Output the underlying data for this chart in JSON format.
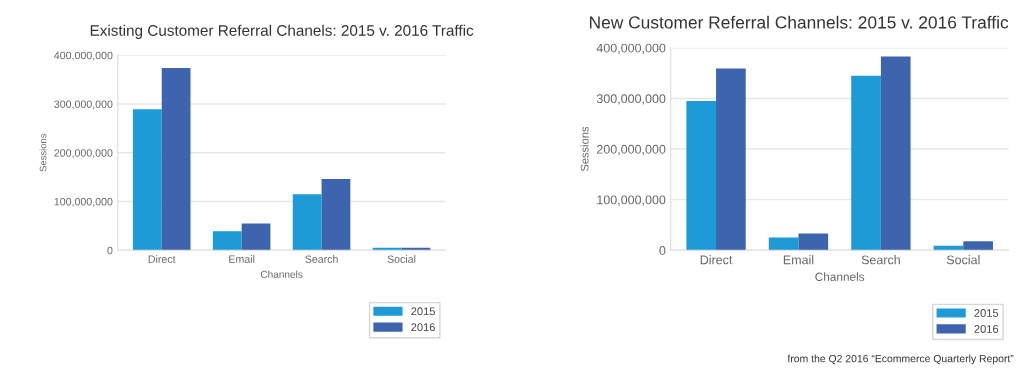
{
  "chart_data": [
    {
      "type": "bar",
      "title": "Existing Customer Referral Chanels: 2015 v. 2016 Traffic",
      "xlabel": "Channels",
      "ylabel": "Sessions",
      "categories": [
        "Direct",
        "Email",
        "Search",
        "Social"
      ],
      "series": [
        {
          "name": "2015",
          "color": "#1e9ad6",
          "values": [
            289000000,
            39000000,
            115000000,
            5000000
          ]
        },
        {
          "name": "2016",
          "color": "#3d64ad",
          "values": [
            374000000,
            55000000,
            146000000,
            5000000
          ]
        }
      ],
      "ylim": [
        0,
        400000000
      ],
      "yticks": [
        {
          "value": 0,
          "label": "0"
        },
        {
          "value": 100000000,
          "label": "100,000,000"
        },
        {
          "value": 200000000,
          "label": "200,000,000"
        },
        {
          "value": 300000000,
          "label": "300,000,000"
        },
        {
          "value": 400000000,
          "label": "400,000,000"
        }
      ],
      "grid": "y",
      "legend": "bottom right"
    },
    {
      "type": "bar",
      "title": "New Customer Referral Channels: 2015 v. 2016 Traffic",
      "xlabel": "Channels",
      "ylabel": "Sessions",
      "categories": [
        "Direct",
        "Email",
        "Search",
        "Social"
      ],
      "series": [
        {
          "name": "2015",
          "color": "#1e9ad6",
          "values": [
            295000000,
            25000000,
            345000000,
            9000000
          ]
        },
        {
          "name": "2016",
          "color": "#3d64ad",
          "values": [
            359000000,
            33000000,
            383000000,
            18000000
          ]
        }
      ],
      "ylim": [
        0,
        400000000
      ],
      "yticks": [
        {
          "value": 0,
          "label": "0"
        },
        {
          "value": 100000000,
          "label": "100,000,000"
        },
        {
          "value": 200000000,
          "label": "200,000,000"
        },
        {
          "value": 300000000,
          "label": "300,000,000"
        },
        {
          "value": 400000000,
          "label": "400,000,000"
        }
      ],
      "grid": "y",
      "legend": "bottom right",
      "annotations": [
        "from the Q2 2016 “Ecommerce Quarterly Report”"
      ]
    }
  ]
}
